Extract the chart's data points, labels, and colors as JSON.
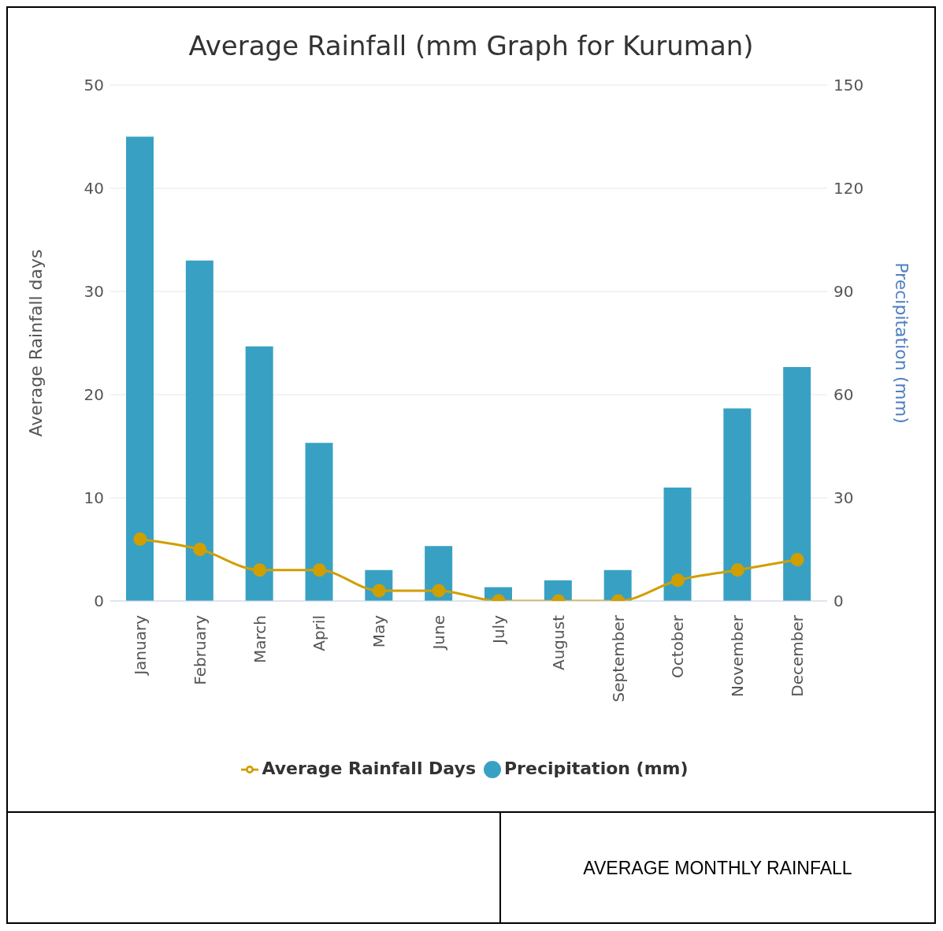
{
  "chart_data": {
    "type": "bar",
    "title": "Average Rainfall (mm Graph for Kuruman)",
    "categories": [
      "January",
      "February",
      "March",
      "April",
      "May",
      "June",
      "July",
      "August",
      "September",
      "October",
      "November",
      "December"
    ],
    "series": [
      {
        "name": "Precipitation (mm)",
        "axis": "y2",
        "color": "#38a1c3",
        "values": [
          135,
          99,
          74,
          46,
          9,
          16,
          4,
          6,
          9,
          33,
          56,
          68
        ]
      },
      {
        "name": "Average Rainfall Days",
        "type": "line",
        "color": "#d19e00",
        "values": [
          6,
          5,
          3,
          3,
          1,
          1,
          0,
          0,
          0,
          2,
          3,
          4
        ]
      }
    ],
    "ylabel": "Average Rainfall days",
    "y2label": "Precipitation (mm)",
    "ylim": [
      0,
      50
    ],
    "yticks": [
      0,
      10,
      20,
      30,
      40,
      50
    ],
    "y2lim": [
      0,
      150
    ],
    "y2ticks": [
      0,
      30,
      60,
      90,
      120,
      150
    ],
    "grid": "y",
    "legend": "bottom",
    "marker": "circle",
    "annotations": [
      "AVERAGE MONTHLY RAINFALL"
    ]
  }
}
